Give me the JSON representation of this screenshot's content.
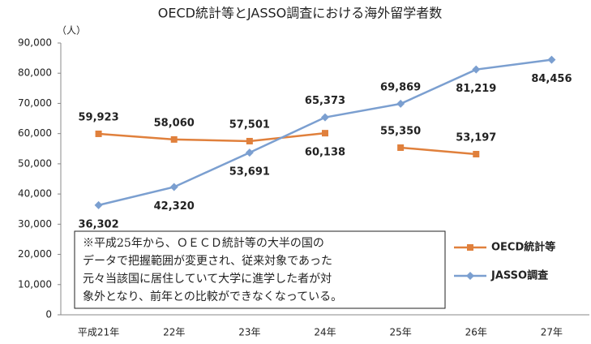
{
  "chart_data": {
    "type": "line",
    "title": "OECD統計等とJASSO調査における海外留学者数",
    "y_unit": "（人）",
    "categories": [
      "平成21年",
      "22年",
      "23年",
      "24年",
      "25年",
      "26年",
      "27年"
    ],
    "series": [
      {
        "name": "OECD統計等",
        "color": "#e0803c",
        "marker": "square",
        "values": [
          59923,
          58060,
          57501,
          60138,
          55350,
          53197,
          null
        ],
        "value_labels": [
          "59,923",
          "58,060",
          "57,501",
          "60,138",
          "55,350",
          "53,197",
          null
        ],
        "breaks_before": [
          4
        ]
      },
      {
        "name": "JASSO調査",
        "color": "#7b9fd0",
        "marker": "diamond",
        "values": [
          36302,
          42320,
          53691,
          65373,
          69869,
          81219,
          84456
        ],
        "value_labels": [
          "36,302",
          "42,320",
          "53,691",
          "65,373",
          "69,869",
          "81,219",
          "84,456"
        ]
      }
    ],
    "ylim": [
      0,
      90000
    ],
    "yticks": [
      0,
      {
        "value": 10000,
        "label": "10,000"
      },
      {
        "value": 20000,
        "label": "20,000"
      },
      {
        "value": 30000,
        "label": "30,000"
      },
      {
        "value": 40000,
        "label": "40,000"
      },
      {
        "value": 50000,
        "label": "50,000"
      },
      {
        "value": 60000,
        "label": "60,000"
      },
      {
        "value": 70000,
        "label": "70,000"
      },
      {
        "value": 80000,
        "label": "80,000"
      },
      {
        "value": 90000,
        "label": "90,000"
      }
    ],
    "grid": false,
    "legend": "right",
    "note": [
      "※平成25年から、ＯＥＣＤ統計等の大半の国の",
      "データで把握範囲が変更され、従来対象であった",
      "元々当該国に居住していて大学に進学した者が対",
      "象外となり、前年との比較ができなくなっている。"
    ]
  }
}
